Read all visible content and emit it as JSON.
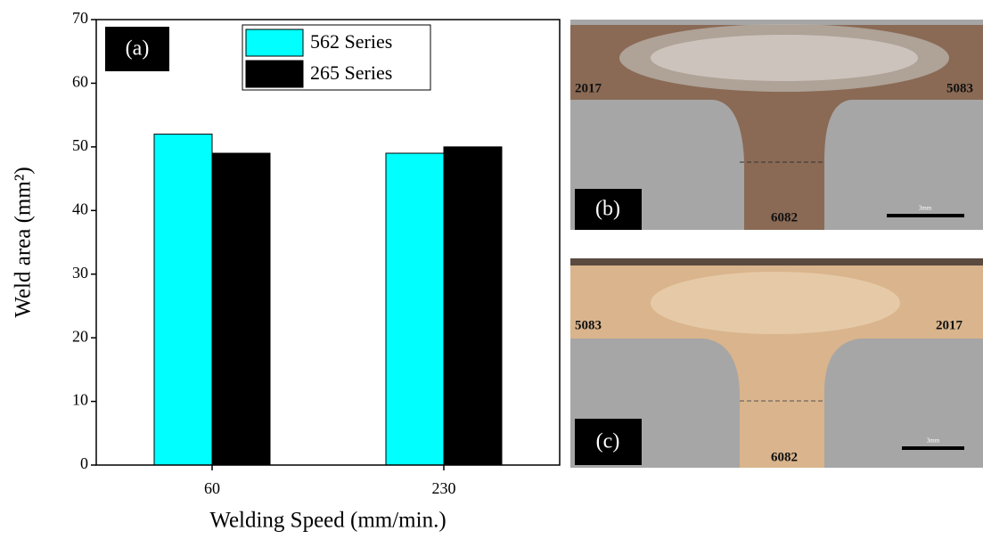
{
  "chart_data": {
    "type": "bar",
    "panel_label": "(a)",
    "xlabel": "Welding Speed (mm/min.)",
    "ylabel": "Weld area (mm²)",
    "categories": [
      "60",
      "230"
    ],
    "series": [
      {
        "name": "562 Series",
        "color": "#00ffff",
        "values": [
          52,
          49
        ]
      },
      {
        "name": "265 Series",
        "color": "#000000",
        "values": [
          49,
          50
        ]
      }
    ],
    "ylim": [
      0,
      70
    ],
    "yticks": [
      0,
      10,
      20,
      30,
      40,
      50,
      60,
      70
    ],
    "grid": false,
    "legend": "top"
  },
  "micrographs": [
    {
      "label": "(b)",
      "left_alloy": "2017",
      "right_alloy": "5083",
      "bottom_alloy": "6082",
      "scale": "3mm"
    },
    {
      "label": "(c)",
      "left_alloy": "5083",
      "right_alloy": "2017",
      "bottom_alloy": "6082",
      "scale": "3mm"
    }
  ]
}
